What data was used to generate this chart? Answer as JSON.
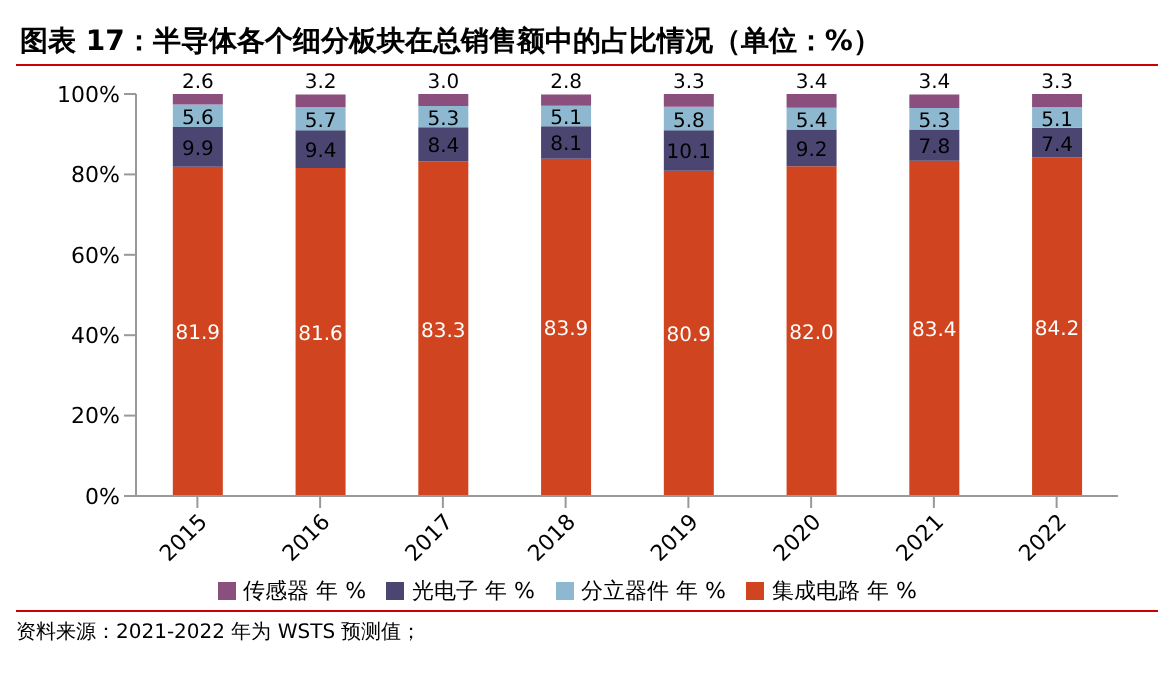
{
  "chart_data": {
    "type": "bar",
    "title": "图表 17：半导体各个细分板块在总销售额中的占比情况（单位：%）",
    "categories": [
      "2015",
      "2016",
      "2017",
      "2018",
      "2019",
      "2020",
      "2021",
      "2022"
    ],
    "stacked": true,
    "legend": "bottom",
    "ylim": [
      0,
      100
    ],
    "yticks": [
      {
        "value": 0,
        "label": "0%"
      },
      {
        "value": 20,
        "label": "20%"
      },
      {
        "value": 40,
        "label": "40%"
      },
      {
        "value": 60,
        "label": "60%"
      },
      {
        "value": 80,
        "label": "80%"
      },
      {
        "value": 100,
        "label": "100%"
      }
    ],
    "series": [
      {
        "name": "集成电路 年 %",
        "color": "#d0441f",
        "values": [
          81.9,
          81.6,
          83.3,
          83.9,
          80.9,
          82.0,
          83.4,
          84.2
        ],
        "value_labels": [
          "81.9",
          "81.6",
          "83.3",
          "83.9",
          "80.9",
          "82.0",
          "83.4",
          "84.2"
        ]
      },
      {
        "name": "光电子 年 %",
        "color": "#4b4572",
        "values": [
          9.9,
          9.4,
          8.4,
          8.1,
          10.1,
          9.2,
          7.8,
          7.4
        ],
        "value_labels": [
          "9.9",
          "9.4",
          "8.4",
          "8.1",
          "10.1",
          "9.2",
          "7.8",
          "7.4"
        ]
      },
      {
        "name": "分立器件 年 %",
        "color": "#8db8d0",
        "values": [
          5.6,
          5.7,
          5.3,
          5.1,
          5.8,
          5.4,
          5.3,
          5.1
        ],
        "value_labels": [
          "5.6",
          "5.7",
          "5.3",
          "5.1",
          "5.8",
          "5.4",
          "5.3",
          "5.1"
        ]
      },
      {
        "name": "传感器 年 %",
        "color": "#8b4f7e",
        "values": [
          2.6,
          3.2,
          3.0,
          2.8,
          3.3,
          3.4,
          3.4,
          3.3
        ],
        "value_labels": [
          "2.6",
          "3.2",
          "3.0",
          "2.8",
          "3.3",
          "3.4",
          "3.4",
          "3.3"
        ]
      }
    ],
    "annotations": [
      "资料来源：2021-2022 年为 WSTS 预测值；"
    ]
  }
}
